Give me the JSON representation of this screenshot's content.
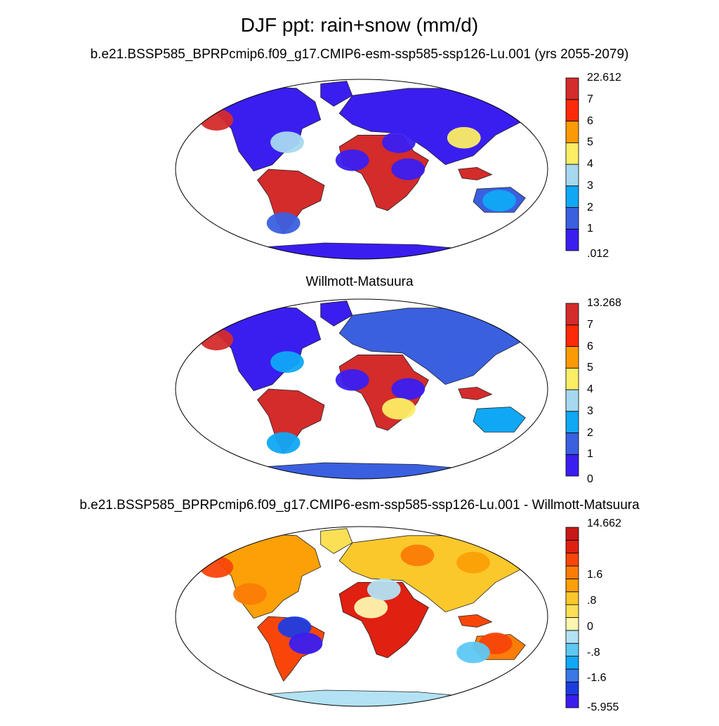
{
  "title": "DJF ppt: rain+snow (mm/d)",
  "panels": [
    {
      "subtitle": "b.e21.BSSP585_BPRPcmip6.f09_g17.CMIP6-esm-ssp585-ssp126-Lu.001 (yrs 2055-2079)",
      "colorbar": {
        "colors": [
          "#3a1ef0",
          "#3a60e0",
          "#10a8f5",
          "#a6d8f0",
          "#fbed64",
          "#fb9a04",
          "#fb2a08",
          "#d42b2b"
        ],
        "labels": [
          ".012",
          "1",
          "2",
          "3",
          "4",
          "5",
          "6",
          "7",
          "22.612"
        ]
      }
    },
    {
      "subtitle": "Willmott-Matsuura",
      "colorbar": {
        "colors": [
          "#3a1ef0",
          "#3a60e0",
          "#10a8f5",
          "#a6d8f0",
          "#fbed64",
          "#fb9a04",
          "#fb2a08",
          "#d42b2b"
        ],
        "labels": [
          "0",
          "1",
          "2",
          "3",
          "4",
          "5",
          "6",
          "7",
          "13.268"
        ]
      }
    },
    {
      "subtitle": "b.e21.BSSP585_BPRPcmip6.f09_g17.CMIP6-esm-ssp585-ssp126-Lu.001 - Willmott-Matsuura",
      "colorbar": {
        "colors": [
          "#3a1ef0",
          "#1d3ce0",
          "#3a78e8",
          "#10a8f5",
          "#5ec8f3",
          "#b2e2f3",
          "#fdf6b0",
          "#fbe056",
          "#fbc82c",
          "#fba006",
          "#fb7c06",
          "#f8460a",
          "#e02010",
          "#c81818"
        ],
        "labels": [
          "-5.955",
          "",
          "-1.6",
          "",
          "-.8",
          "",
          "0",
          "",
          ".8",
          "",
          "1.6",
          "",
          "",
          "14.662"
        ]
      }
    }
  ]
}
